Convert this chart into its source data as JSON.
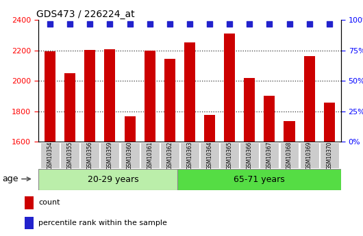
{
  "title": "GDS473 / 226224_at",
  "samples": [
    "GSM10354",
    "GSM10355",
    "GSM10356",
    "GSM10359",
    "GSM10360",
    "GSM10361",
    "GSM10362",
    "GSM10363",
    "GSM10364",
    "GSM10365",
    "GSM10366",
    "GSM10367",
    "GSM10368",
    "GSM10369",
    "GSM10370"
  ],
  "counts": [
    2195,
    2050,
    2205,
    2210,
    1765,
    2200,
    2145,
    2255,
    1775,
    2310,
    2020,
    1900,
    1735,
    2165,
    1855
  ],
  "percentile_ranks": [
    97,
    97,
    97,
    97,
    97,
    97,
    97,
    97,
    97,
    97,
    97,
    97,
    97,
    97,
    97
  ],
  "group1_label": "20-29 years",
  "group2_label": "65-71 years",
  "group1_count": 7,
  "group2_count": 8,
  "age_label": "age",
  "ylim_left": [
    1600,
    2400
  ],
  "ylim_right": [
    0,
    100
  ],
  "yticks_left": [
    1600,
    1800,
    2000,
    2200,
    2400
  ],
  "yticks_right": [
    0,
    25,
    50,
    75,
    100
  ],
  "bar_color": "#CC0000",
  "dot_color": "#2222CC",
  "group1_bg": "#BBEEAA",
  "group2_bg": "#55DD44",
  "tick_bg": "#CCCCCC",
  "legend_count_color": "#CC0000",
  "legend_pct_color": "#2222CC",
  "bar_width": 0.55,
  "dot_size": 35,
  "grid_color": "#333333",
  "fig_width": 5.3,
  "fig_height": 3.45,
  "dpi": 100
}
